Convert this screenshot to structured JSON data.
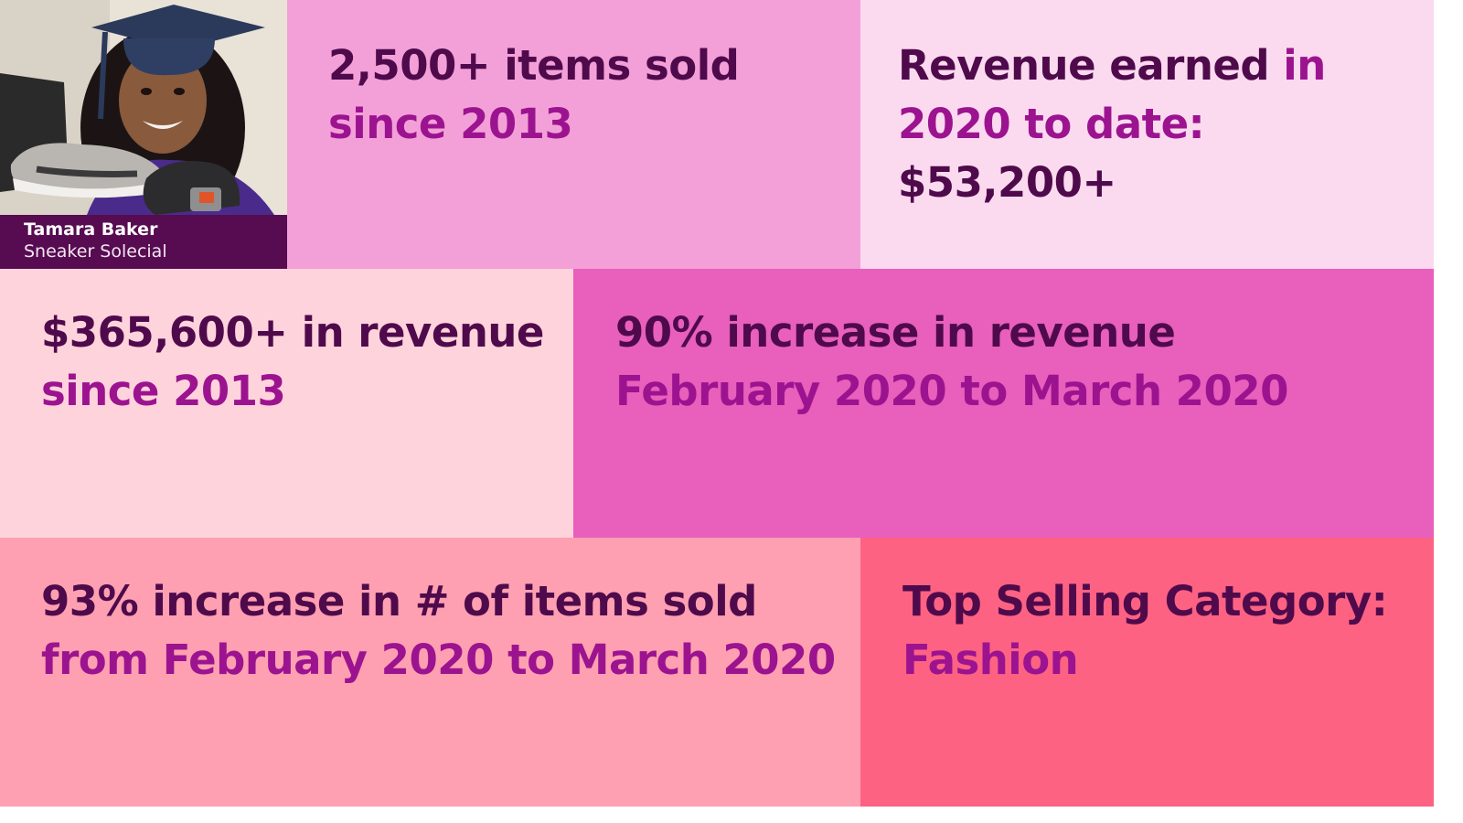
{
  "profile": {
    "name": "Tamara Baker",
    "business": "Sneaker Solecial"
  },
  "tiles": {
    "items_sold": {
      "line1": "2,500+ items sold",
      "line2": "since 2013"
    },
    "revenue_2020": {
      "line1_dark": "Revenue earned ",
      "line1_accent": "in",
      "line2": "2020 to date:",
      "line3": "$53,200+"
    },
    "total_revenue": {
      "line1": "$365,600+ in revenue",
      "line2": "since 2013"
    },
    "revenue_increase": {
      "line1": "90% increase in revenue",
      "line2": "February 2020 to March 2020"
    },
    "items_increase": {
      "line1": "93% increase in # of items sold",
      "line2": "from February 2020 to March 2020"
    },
    "top_category": {
      "line1": "Top Selling Category:",
      "line2": "Fashion"
    }
  },
  "colors": {
    "dark_text": "#4f0a4c",
    "accent_text": "#9c1390",
    "tile_items_sold": "#f3a0d8",
    "tile_revenue_2020": "#fbdaef",
    "tile_total_revenue": "#ffd3dc",
    "tile_revenue_increase": "#e85fbc",
    "tile_items_increase": "#fea0b1",
    "tile_top_category": "#fe6283",
    "caption_bar": "#570b51"
  }
}
